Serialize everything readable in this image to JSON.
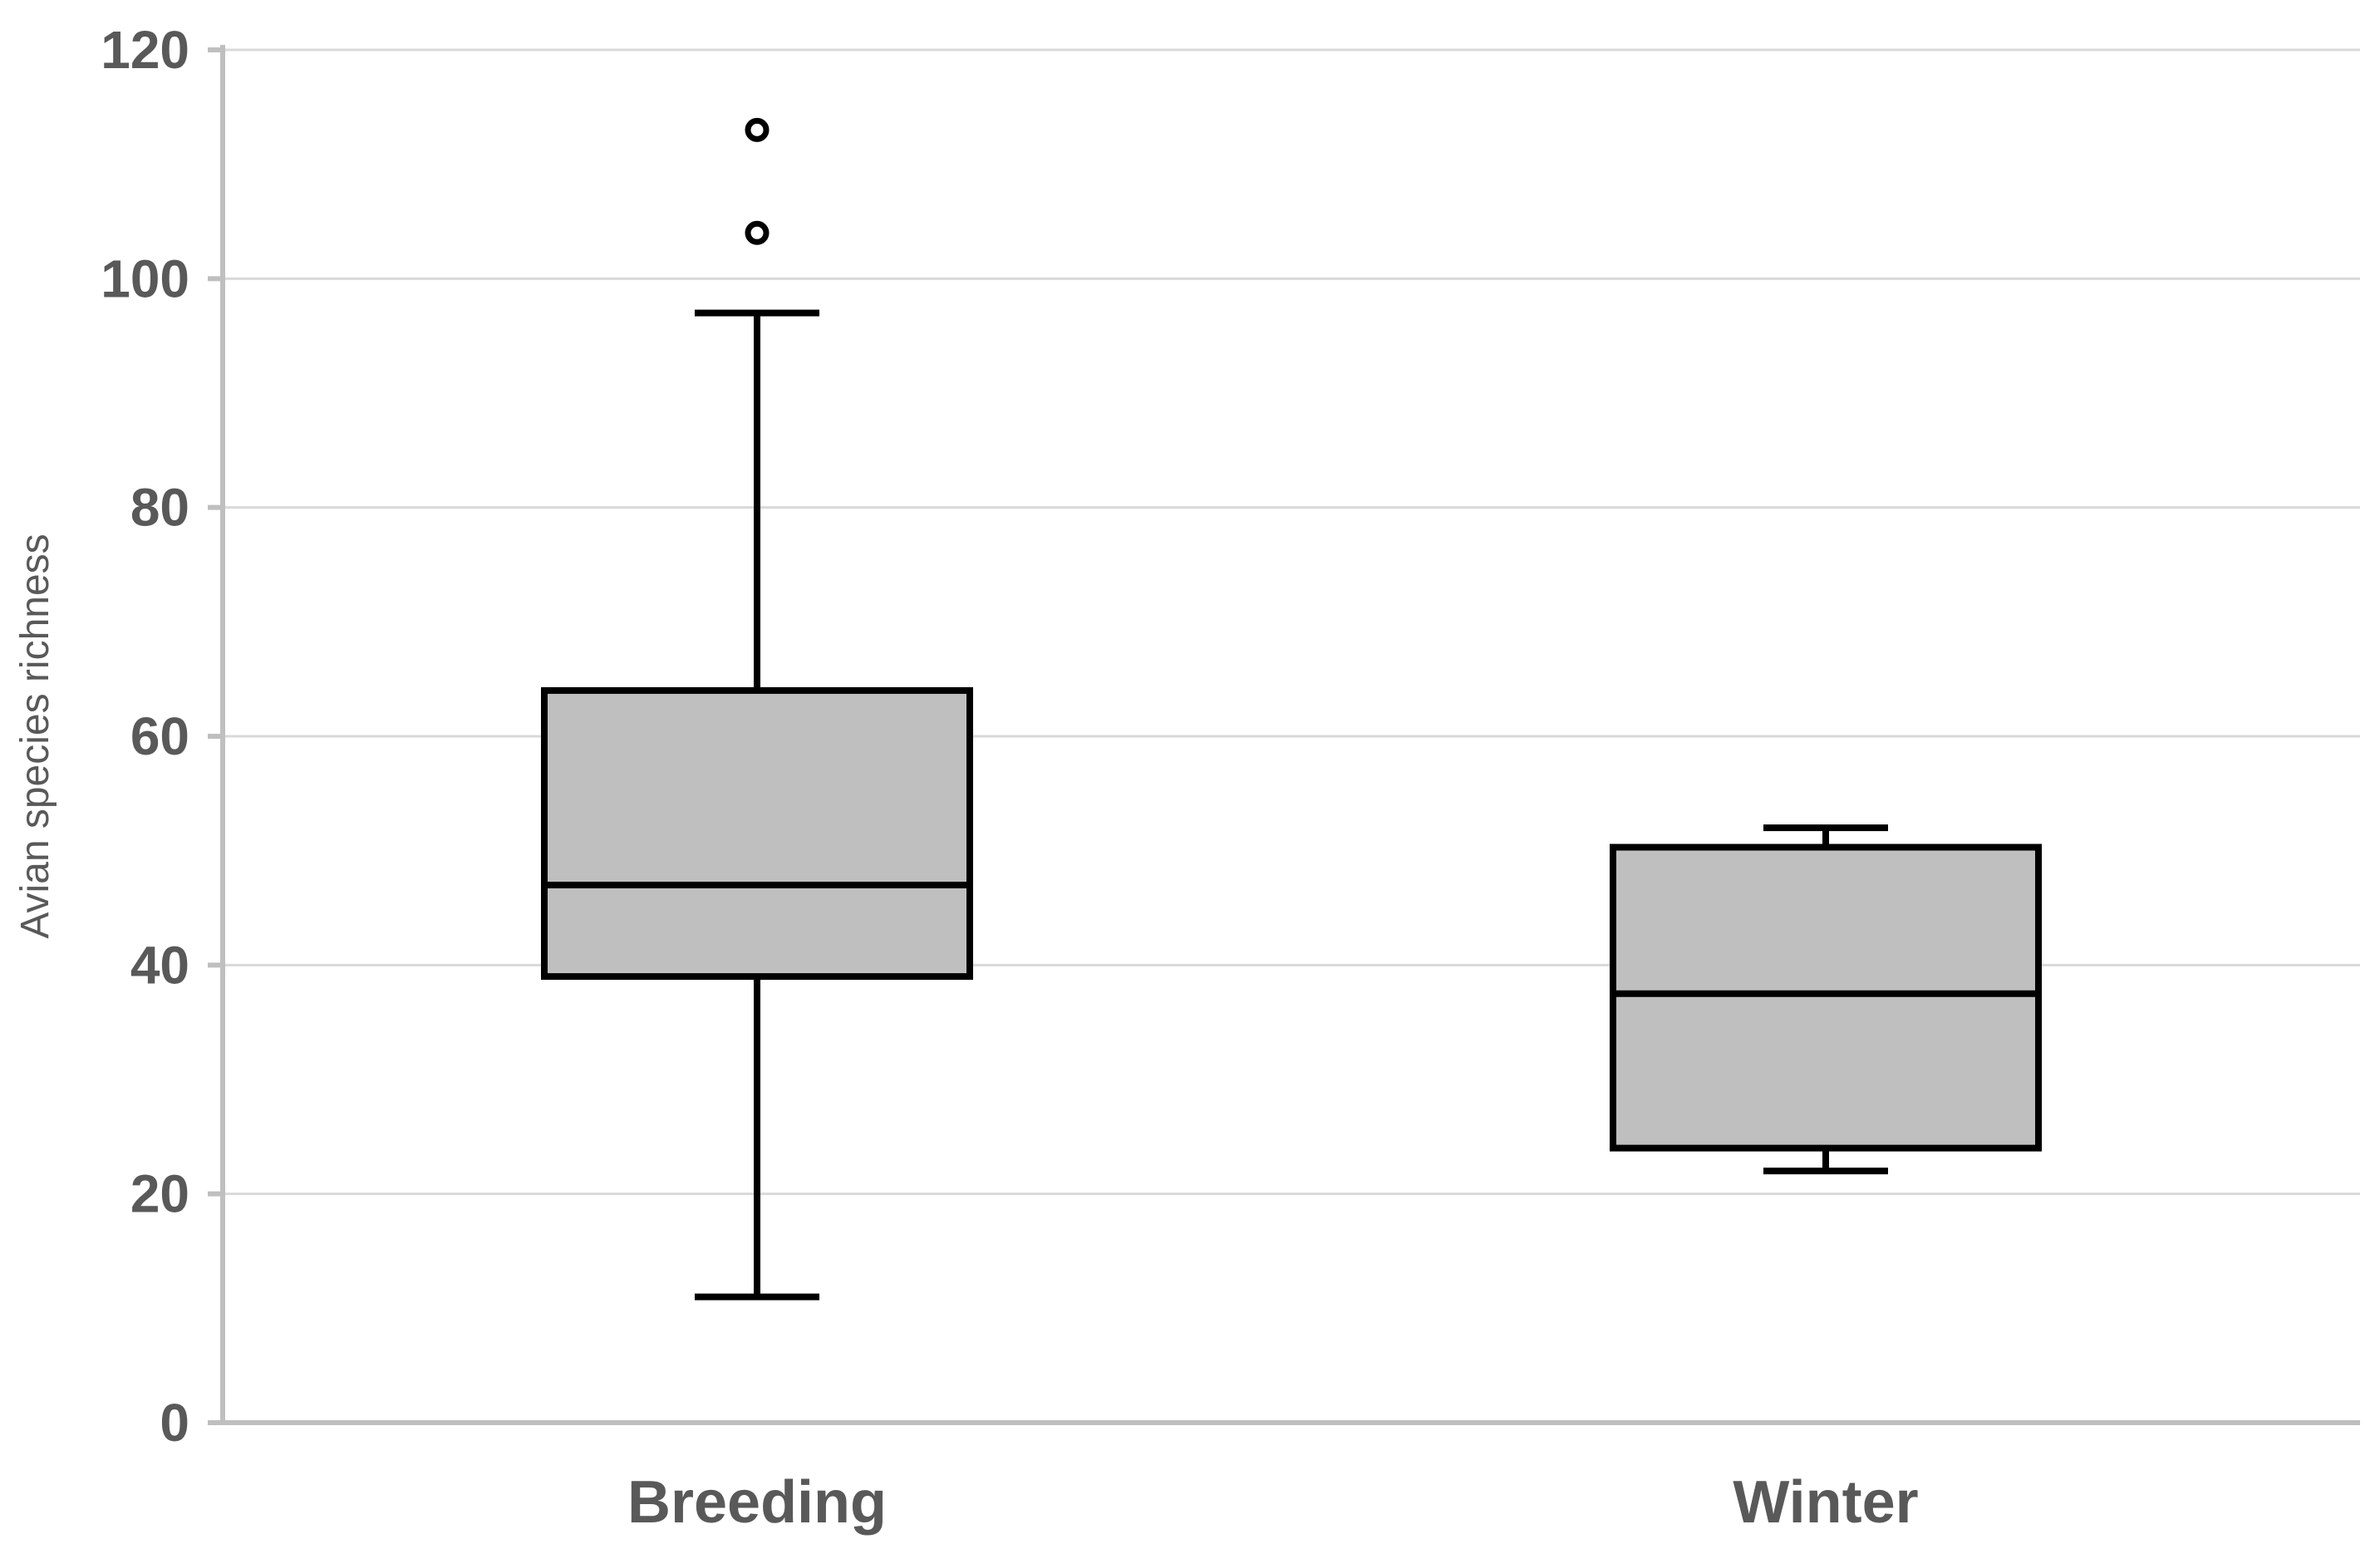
{
  "chart_data": {
    "type": "box",
    "title": "",
    "xlabel": "",
    "ylabel": "Avian species richness",
    "ylim": [
      0,
      120
    ],
    "yticks": [
      0,
      20,
      40,
      60,
      80,
      100,
      120
    ],
    "grid": true,
    "categories": [
      "Breeding",
      "Winter"
    ],
    "boxes": [
      {
        "name": "Breeding",
        "whisker_low": 11,
        "q1": 39,
        "median": 47,
        "q3": 64,
        "whisker_high": 97,
        "outliers": [
          104,
          113
        ]
      },
      {
        "name": "Winter",
        "whisker_low": 22,
        "q1": 24,
        "median": 37.5,
        "q3": 50.3,
        "whisker_high": 52,
        "outliers": []
      }
    ],
    "colors": {
      "box_fill": "#bfbfbf",
      "box_stroke": "#000000",
      "grid": "#d9d9d9",
      "axis": "#bfbfbf",
      "text": "#595959"
    }
  }
}
